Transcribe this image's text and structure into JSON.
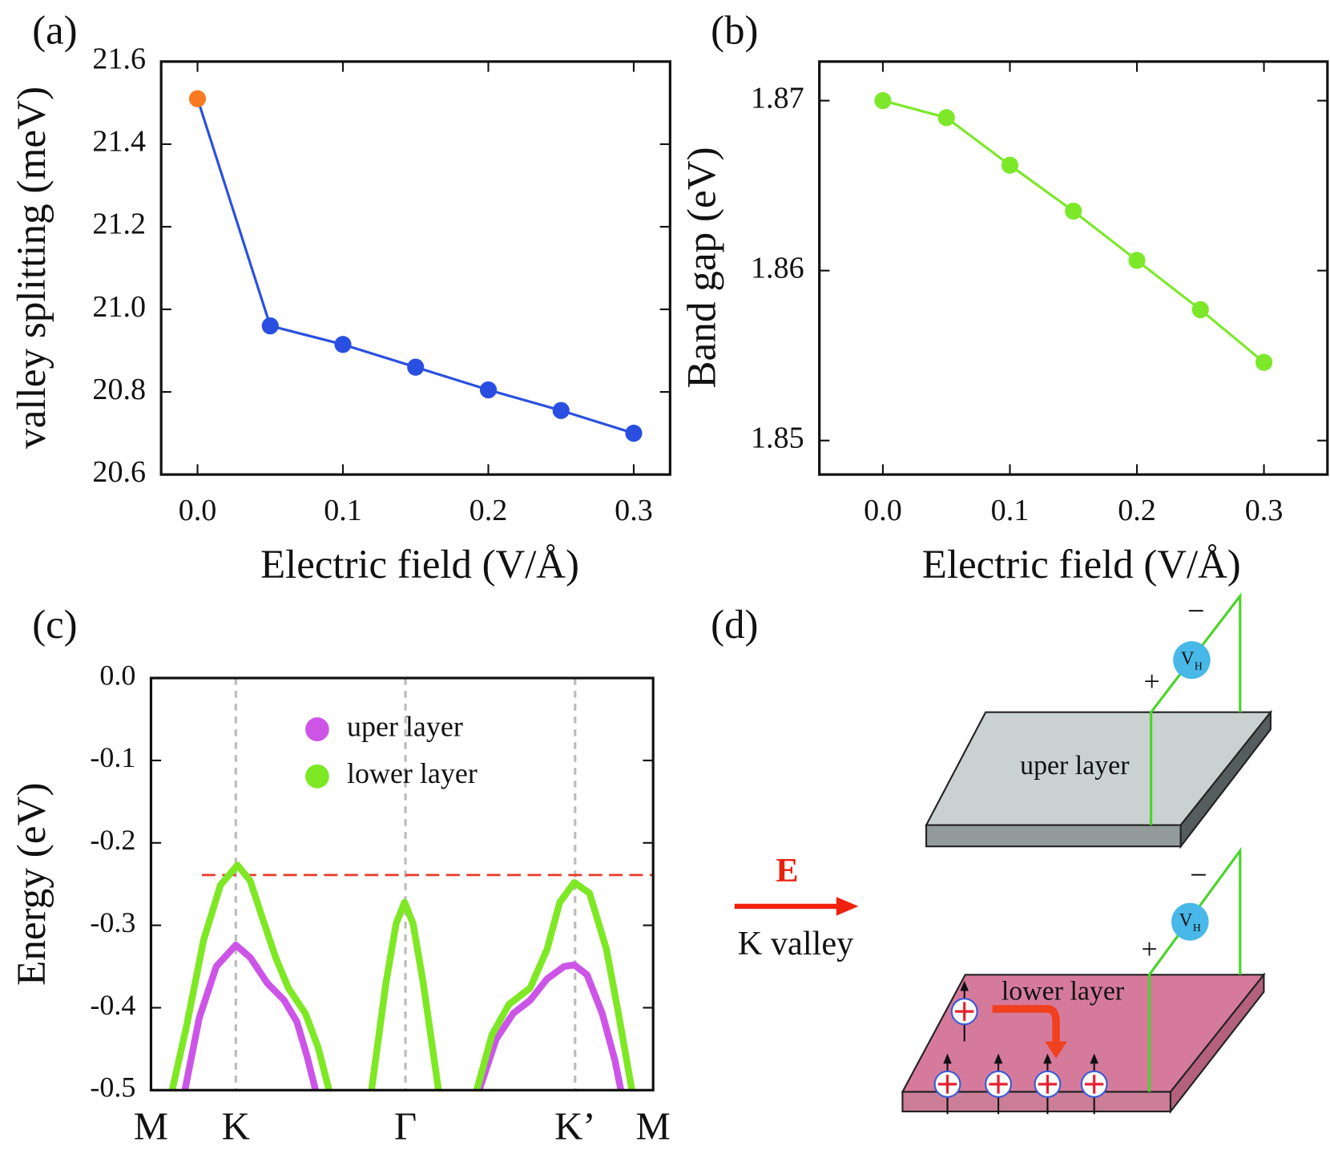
{
  "chart_data": [
    {
      "type": "line",
      "panel_label": "(a)",
      "x_label": "Electric field (V/Å)",
      "y_label": "valley splitting (meV)",
      "series": [
        {
          "x": [
            0,
            0.05,
            0.1,
            0.15,
            0.2,
            0.25,
            0.3
          ],
          "values": [
            21.51,
            20.96,
            20.915,
            20.86,
            20.805,
            20.755,
            20.7
          ],
          "color": "#2a4fe0",
          "point_colors": [
            "#f97a20",
            "#2a4fe0",
            "#2a4fe0",
            "#2a4fe0",
            "#2a4fe0",
            "#2a4fe0",
            "#2a4fe0"
          ]
        }
      ],
      "markers": true,
      "xlim": [
        -0.025,
        0.325
      ],
      "xticks": [
        {
          "value": 0,
          "label": "0.0"
        },
        0.1,
        0.2,
        0.3
      ],
      "ylim": [
        20.6,
        21.6
      ],
      "yticks": [
        20.6,
        20.8,
        {
          "value": 21,
          "label": "21.0"
        },
        21.2,
        21.4,
        21.6
      ]
    },
    {
      "type": "line",
      "panel_label": "(b)",
      "x_label": "Electric field (V/Å)",
      "y_label": "Band gap (eV)",
      "series": [
        {
          "x": [
            0,
            0.05,
            0.1,
            0.15,
            0.2,
            0.25,
            0.3
          ],
          "values": [
            1.87,
            1.869,
            1.8662,
            1.8635,
            1.8606,
            1.8577,
            1.8546
          ],
          "color": "#7de82a"
        }
      ],
      "markers": true,
      "xlim": [
        -0.05,
        0.35
      ],
      "xticks": [
        {
          "value": 0,
          "label": "0.0"
        },
        0.1,
        0.2,
        0.3
      ],
      "ylim": [
        1.848,
        1.8723
      ],
      "yticks": [
        1.85,
        1.86,
        1.87
      ]
    },
    {
      "type": "line",
      "panel_label": "(c)",
      "y_label": "Energy (eV)",
      "series": [
        {
          "name": "uper layer",
          "color": "#cc55e8",
          "x": [
            0.2,
            0.285,
            0.385,
            0.5,
            0.585,
            0.685,
            0.785,
            0.86,
            0.92,
            0.97,
            null,
            1.935,
            2.035,
            2.135,
            2.235,
            2.335,
            2.435,
            2.495,
            2.57,
            2.66,
            2.735,
            2.77
          ],
          "values": [
            -0.5,
            -0.412,
            -0.35,
            -0.324,
            -0.339,
            -0.37,
            -0.391,
            -0.417,
            -0.459,
            -0.5,
            null,
            -0.5,
            -0.438,
            -0.407,
            -0.391,
            -0.365,
            -0.35,
            -0.348,
            -0.36,
            -0.407,
            -0.464,
            -0.5
          ]
        },
        {
          "name": "lower layer",
          "color": "#7ee825",
          "x": [
            0.125,
            0.21,
            0.31,
            0.41,
            0.51,
            0.585,
            0.66,
            0.735,
            0.81,
            0.91,
            0.985,
            1.05,
            null,
            1.3,
            1.385,
            1.445,
            1.495,
            1.545,
            1.605,
            1.695,
            null,
            1.92,
            2.01,
            2.11,
            2.235,
            2.335,
            2.41,
            2.495,
            2.585,
            2.685,
            2.76,
            2.835
          ],
          "values": [
            -0.5,
            -0.422,
            -0.318,
            -0.251,
            -0.227,
            -0.246,
            -0.293,
            -0.339,
            -0.376,
            -0.407,
            -0.448,
            -0.5,
            null,
            -0.5,
            -0.37,
            -0.298,
            -0.272,
            -0.298,
            -0.37,
            -0.5,
            null,
            -0.5,
            -0.433,
            -0.396,
            -0.376,
            -0.329,
            -0.272,
            -0.248,
            -0.261,
            -0.329,
            -0.412,
            -0.5
          ]
        }
      ],
      "markers": false,
      "grid": true,
      "legend": "upper center",
      "reference_line": -0.239,
      "reference_color": "#e83a2a",
      "xlim": [
        0,
        2.96
      ],
      "xticks": [
        {
          "value": 0,
          "label": "M"
        },
        {
          "value": 0.5,
          "label": "K"
        },
        {
          "value": 1.5,
          "label": "Γ"
        },
        {
          "value": 2.5,
          "label": "K’"
        },
        {
          "value": 2.96,
          "label": "M"
        }
      ],
      "ylim": [
        -0.5,
        0
      ],
      "yticks": [
        -0.5,
        -0.4,
        -0.3,
        -0.2,
        -0.1,
        {
          "value": 0,
          "label": "0.0"
        }
      ]
    }
  ],
  "diagram": {
    "panel_label": "(d)",
    "field_label": "E",
    "valley_label": "K valley",
    "upper_plate": {
      "label": "uper layer",
      "meter": "V",
      "meter_sub": "H",
      "minus": "−",
      "plus": "+"
    },
    "lower_plate": {
      "label": "lower layer",
      "meter": "V",
      "meter_sub": "H",
      "minus": "−",
      "plus": "+"
    }
  }
}
